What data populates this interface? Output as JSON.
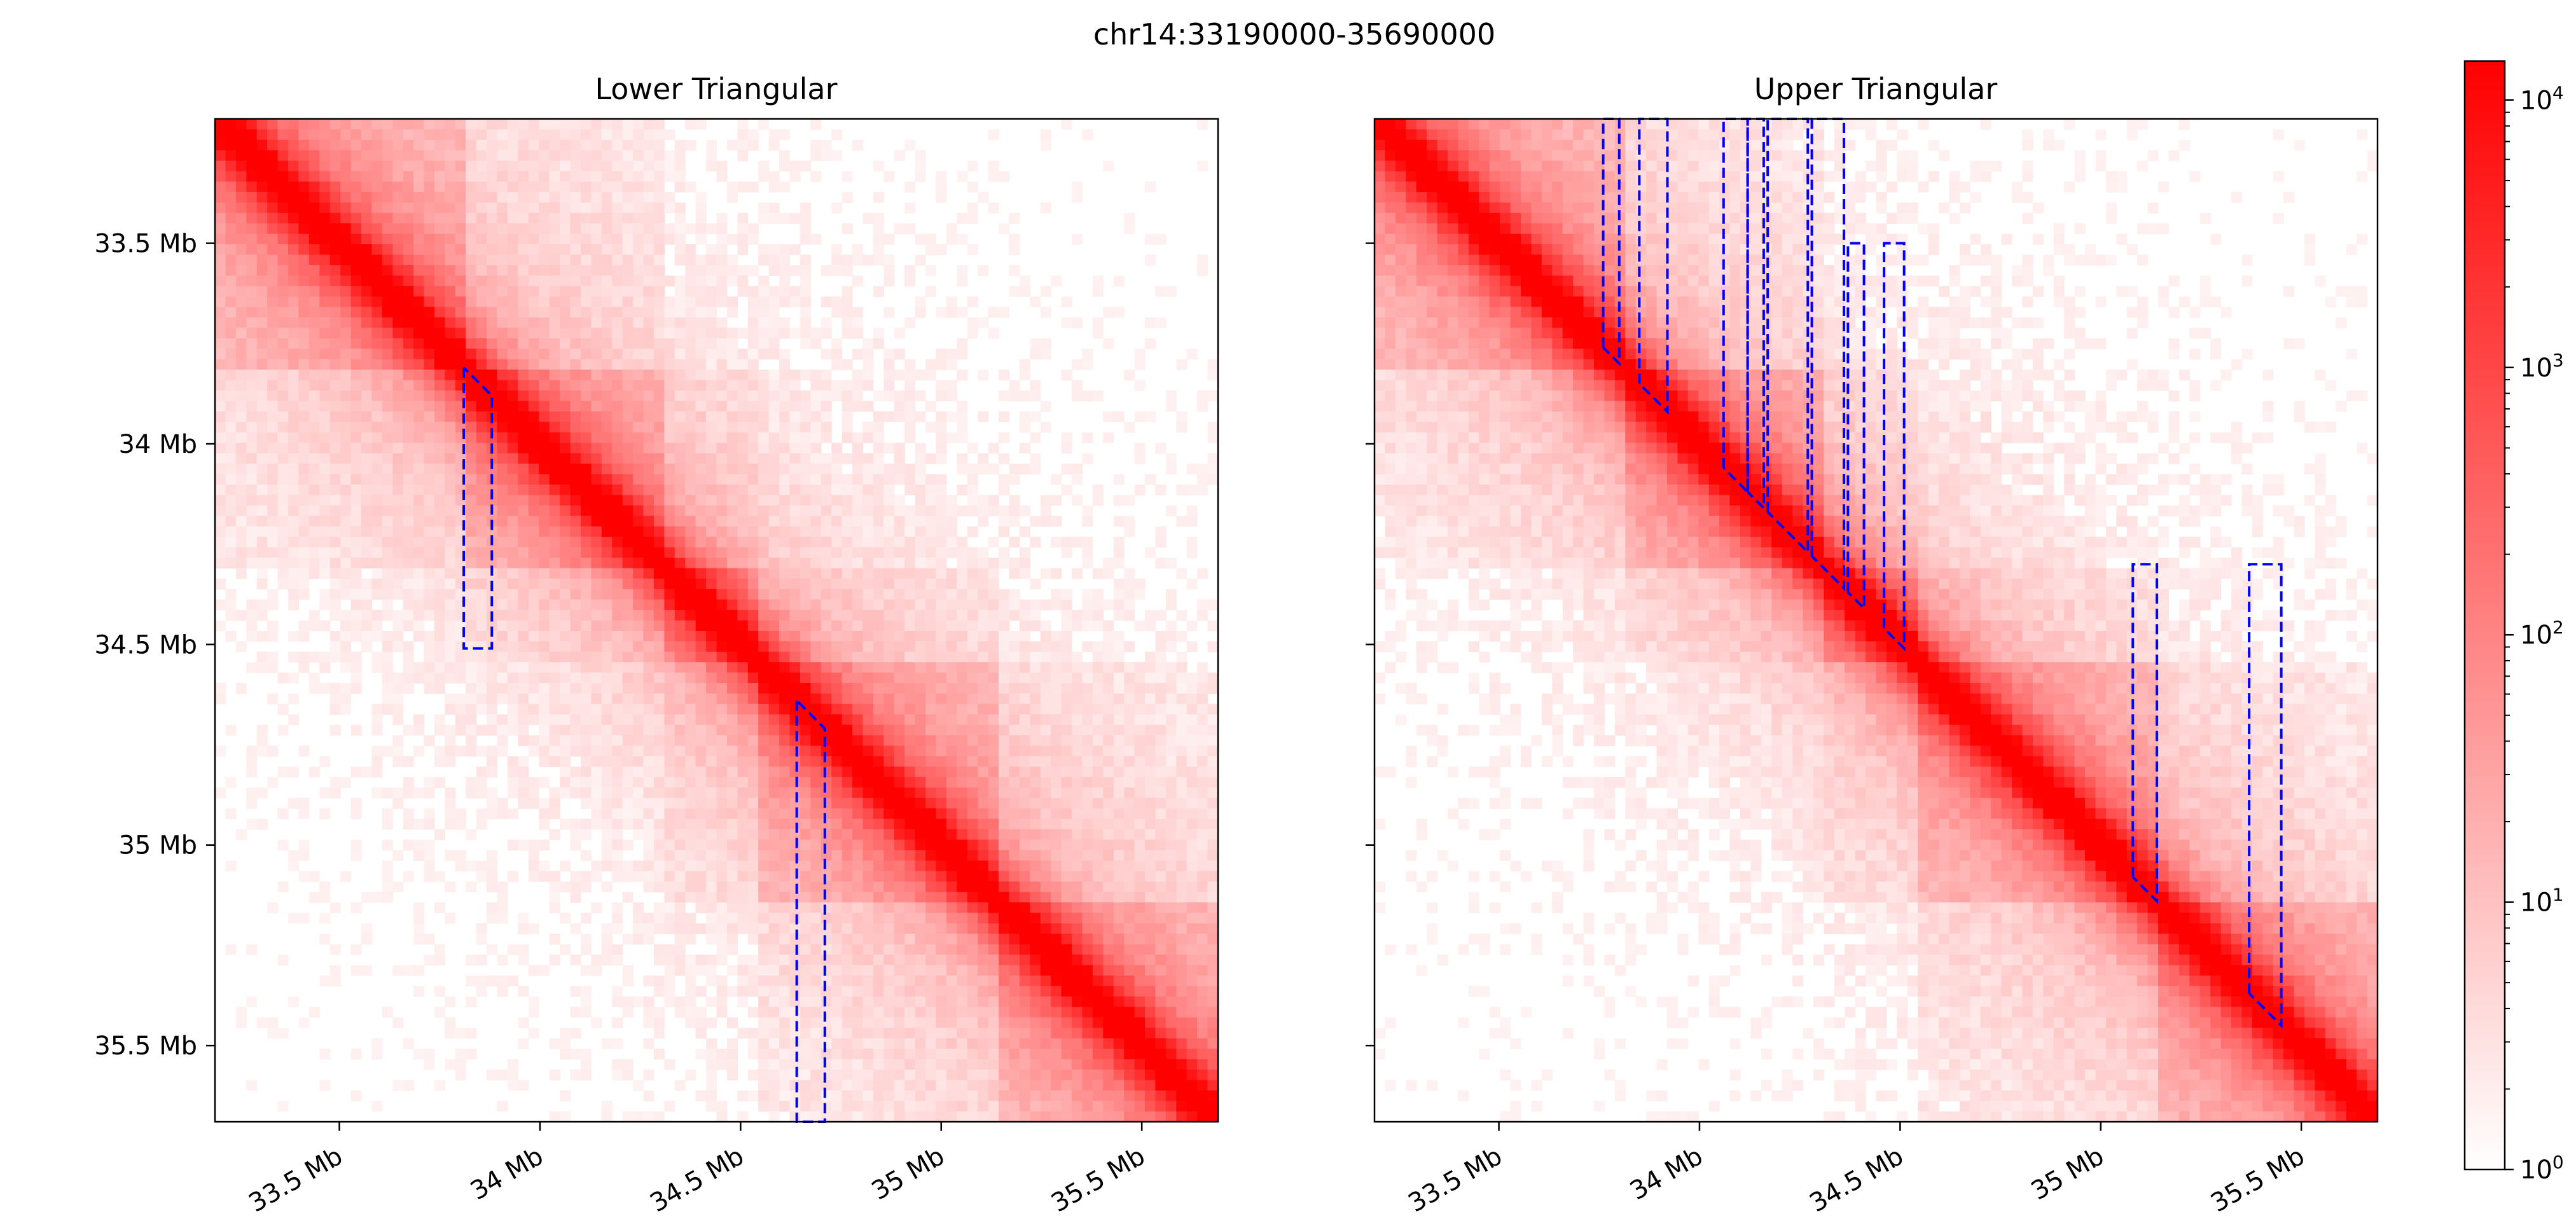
{
  "figure": {
    "title": "chr14:33190000-35690000"
  },
  "chart_data": [
    {
      "type": "heatmap",
      "title": "Lower Triangular",
      "region_bp": [
        33190000,
        35690000
      ],
      "xticks": [
        {
          "value": 33.5,
          "label": "33.5 Mb"
        },
        {
          "value": 34.0,
          "label": "34 Mb"
        },
        {
          "value": 34.5,
          "label": "34.5 Mb"
        },
        {
          "value": 35.0,
          "label": "35 Mb"
        },
        {
          "value": 35.5,
          "label": "35.5 Mb"
        }
      ],
      "yticks": [
        {
          "value": 33.5,
          "label": "33.5 Mb"
        },
        {
          "value": 34.0,
          "label": "34 Mb"
        },
        {
          "value": 34.5,
          "label": "34.5 Mb"
        },
        {
          "value": 35.0,
          "label": "35 Mb"
        },
        {
          "value": 35.5,
          "label": "35.5 Mb"
        }
      ],
      "tick_labels_visible": {
        "x": true,
        "y": true
      },
      "domains_mb": [
        [
          33.11,
          33.82
        ],
        [
          33.82,
          34.32
        ],
        [
          34.32,
          34.55
        ],
        [
          34.55,
          35.14
        ],
        [
          35.14,
          35.69
        ]
      ],
      "highlights_mb": [
        {
          "start": 33.81,
          "end": 33.88,
          "extent": 34.51
        },
        {
          "start": 34.64,
          "end": 34.71,
          "extent": 35.69
        }
      ],
      "highlight_orientation": "below-diagonal",
      "highlight_color": "#0000ff"
    },
    {
      "type": "heatmap",
      "title": "Upper Triangular",
      "region_bp": [
        33190000,
        35690000
      ],
      "xticks": [
        {
          "value": 33.5,
          "label": "33.5 Mb"
        },
        {
          "value": 34.0,
          "label": "34 Mb"
        },
        {
          "value": 34.5,
          "label": "34.5 Mb"
        },
        {
          "value": 35.0,
          "label": "35 Mb"
        },
        {
          "value": 35.5,
          "label": "35.5 Mb"
        }
      ],
      "yticks": [
        {
          "value": 33.5,
          "label": ""
        },
        {
          "value": 34.0,
          "label": ""
        },
        {
          "value": 34.5,
          "label": ""
        },
        {
          "value": 35.0,
          "label": ""
        },
        {
          "value": 35.5,
          "label": ""
        }
      ],
      "tick_labels_visible": {
        "x": true,
        "y": false
      },
      "domains_mb": [
        [
          33.11,
          33.82
        ],
        [
          33.82,
          34.32
        ],
        [
          34.32,
          34.55
        ],
        [
          34.55,
          35.14
        ],
        [
          35.14,
          35.69
        ]
      ],
      "highlights_mb": [
        {
          "start": 33.76,
          "end": 33.8,
          "extent": 33.19
        },
        {
          "start": 33.85,
          "end": 33.92,
          "extent": 33.19
        },
        {
          "start": 34.06,
          "end": 34.12,
          "extent": 33.19
        },
        {
          "start": 34.12,
          "end": 34.16,
          "extent": 33.19
        },
        {
          "start": 34.17,
          "end": 34.27,
          "extent": 33.19
        },
        {
          "start": 34.28,
          "end": 34.36,
          "extent": 33.19
        },
        {
          "start": 34.37,
          "end": 34.41,
          "extent": 33.5
        },
        {
          "start": 34.46,
          "end": 34.51,
          "extent": 33.5
        },
        {
          "start": 35.08,
          "end": 35.14,
          "extent": 34.3
        },
        {
          "start": 35.37,
          "end": 35.45,
          "extent": 34.3
        }
      ],
      "highlight_orientation": "above-diagonal",
      "highlight_color": "#0000ff"
    }
  ],
  "colorbar": {
    "scale": "log",
    "range": [
      1,
      14000
    ],
    "ticks": [
      {
        "value": 1,
        "base": "10",
        "exp": "0"
      },
      {
        "value": 10,
        "base": "10",
        "exp": "1"
      },
      {
        "value": 100,
        "base": "10",
        "exp": "2"
      },
      {
        "value": 1000,
        "base": "10",
        "exp": "3"
      },
      {
        "value": 10000,
        "base": "10",
        "exp": "4"
      }
    ],
    "colors": [
      "#ffffff",
      "#ff0000"
    ]
  }
}
